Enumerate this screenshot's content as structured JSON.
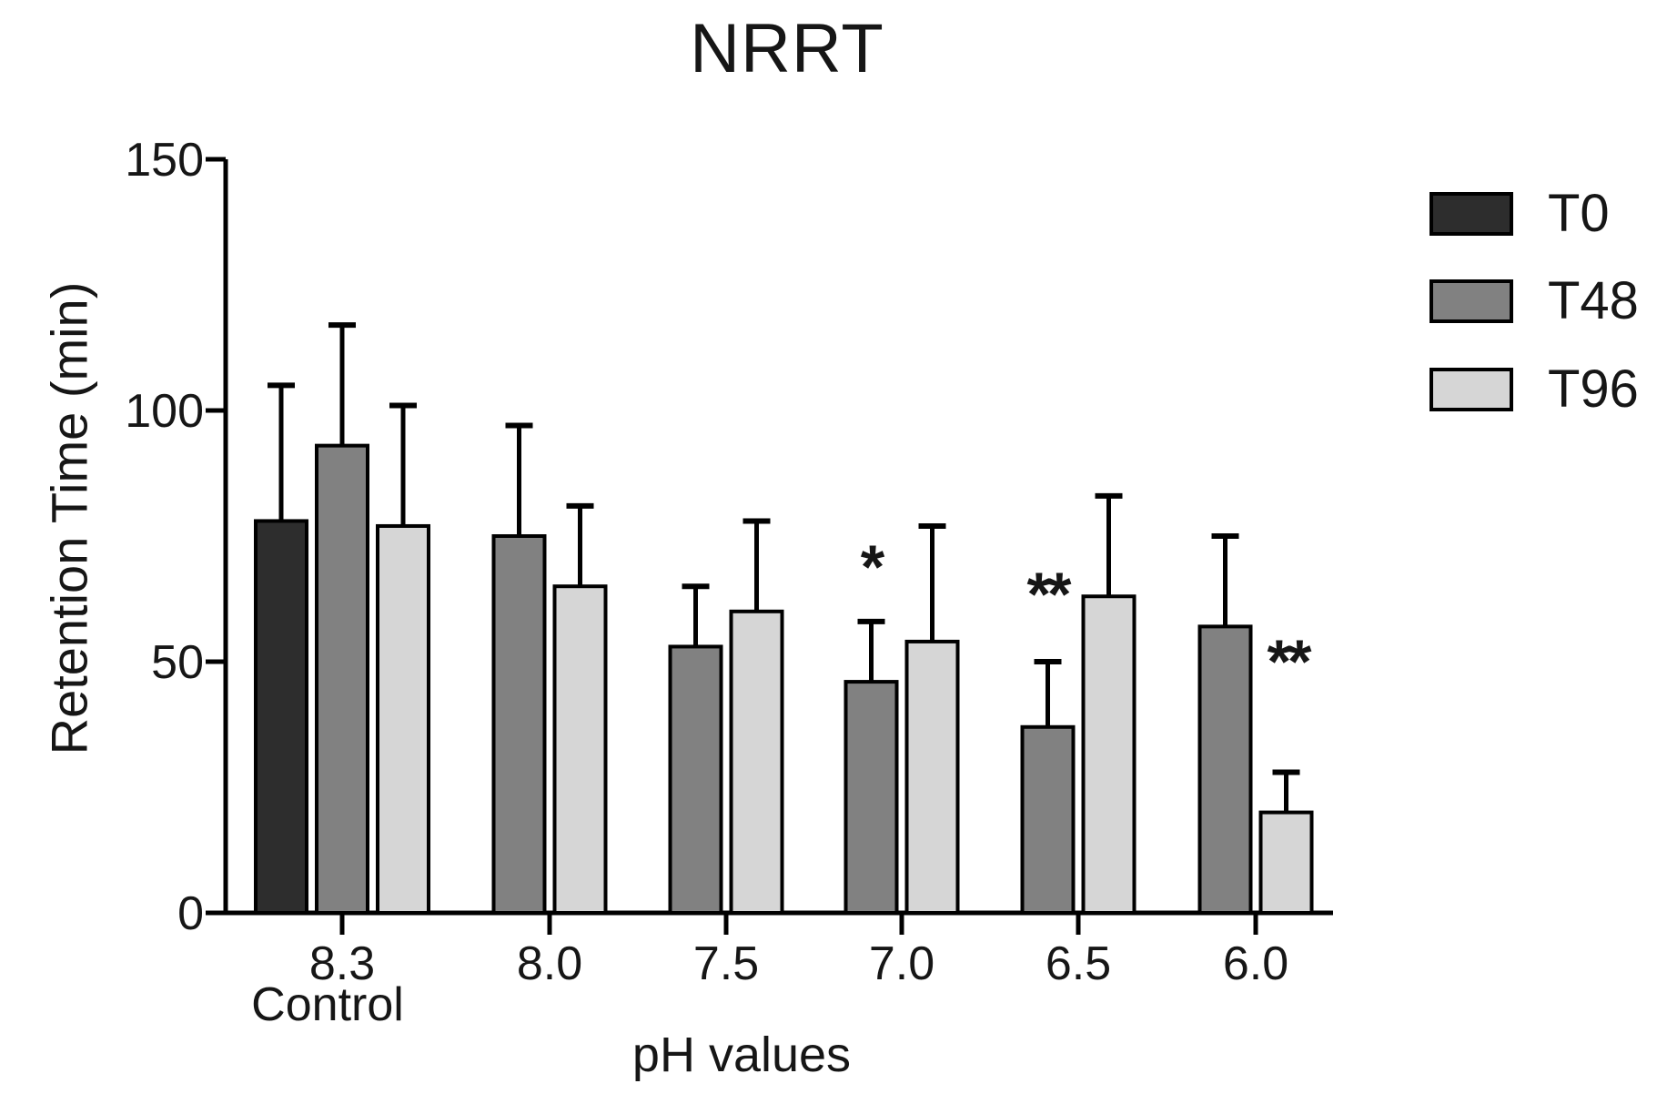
{
  "chart_data": {
    "type": "bar",
    "title": "NRRT",
    "ylabel": "Retention Time (min)",
    "xlabel": "pH values",
    "ylim": [
      0,
      150
    ],
    "yticks": [
      0,
      50,
      100,
      150
    ],
    "categories": [
      "8.3",
      "8.0",
      "7.5",
      "7.0",
      "6.5",
      "6.0"
    ],
    "category_note": {
      "index": 0,
      "label": "Control"
    },
    "grid": false,
    "legend_position": "top-right",
    "error_bars": "upper-sd",
    "series": [
      {
        "name": "T0",
        "color": "#2d2d2d",
        "values": [
          78,
          null,
          null,
          null,
          null,
          null
        ],
        "err_up": [
          27,
          null,
          null,
          null,
          null,
          null
        ]
      },
      {
        "name": "T48",
        "color": "#818181",
        "values": [
          93,
          75,
          53,
          46,
          37,
          57
        ],
        "err_up": [
          24,
          22,
          12,
          12,
          13,
          18
        ]
      },
      {
        "name": "T96",
        "color": "#d6d6d6",
        "values": [
          77,
          65,
          60,
          54,
          63,
          20
        ],
        "err_up": [
          24,
          16,
          18,
          23,
          20,
          8
        ]
      }
    ],
    "annotations": [
      {
        "text": "*",
        "category": "7.0",
        "series": "T48"
      },
      {
        "text": "**",
        "category": "6.5",
        "series": "T48"
      },
      {
        "text": "**",
        "category": "6.0",
        "series": "T96"
      }
    ]
  }
}
